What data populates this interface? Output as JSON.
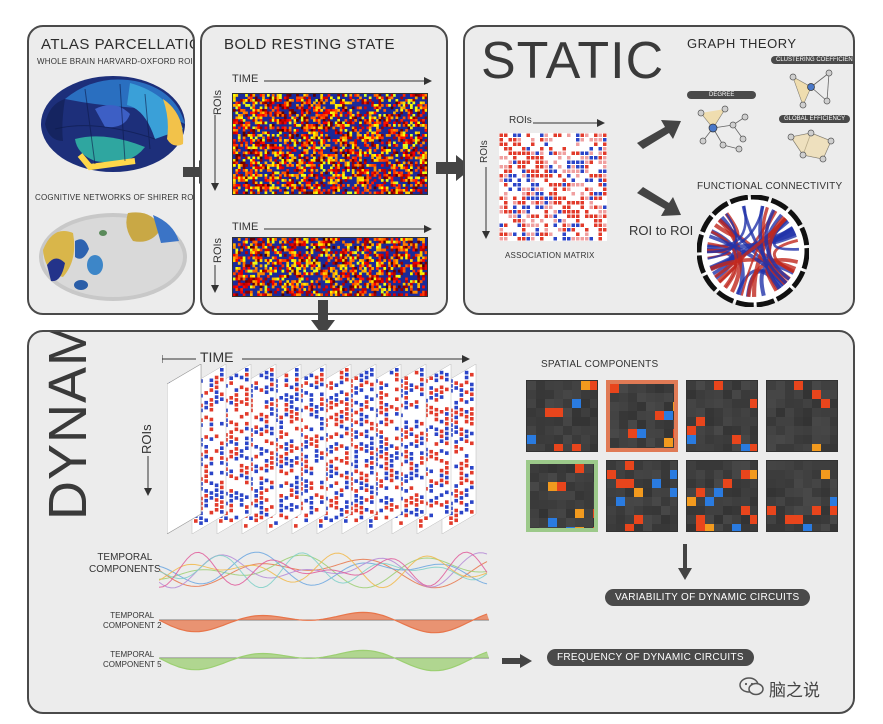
{
  "atlas": {
    "title": "ATLAS PARCELLATION",
    "subtitle1": "WHOLE BRAIN HARVARD-OXFORD ROIs",
    "subtitle2": "COGNITIVE NETWORKS OF SHIRER ROIs"
  },
  "bold": {
    "title": "BOLD RESTING STATE",
    "time_label": "TIME",
    "rois_label": "ROIs"
  },
  "static": {
    "title": "STATIC",
    "graph_theory": "GRAPH THEORY",
    "degree": "DEGREE",
    "clustering": "CLUSTERING COEFFICIENT",
    "global_efficiency": "GLOBAL EFFICIENCY",
    "functional_connectivity": "FUNCTIONAL CONNECTIVITY",
    "roi_to_roi": "ROI to ROI",
    "rois_label": "ROIs",
    "association_matrix": "ASSOCIATION MATRIX"
  },
  "dynamic": {
    "title": "DYNAMIC",
    "time_label": "TIME",
    "rois_label": "ROIs",
    "spatial_components": "SPATIAL COMPONENTS",
    "temporal_components": "TEMPORAL\nCOMPONENTS",
    "temporal_component_2": "TEMPORAL\nCOMPONENT 2",
    "temporal_component_5": "TEMPORAL\nCOMPONENT 5",
    "variability": "VARIABILITY OF DYNAMIC CIRCUITS",
    "frequency": "FREQUENCY OF DYNAMIC CIRCUITS"
  },
  "watermark": "脑之说",
  "colors": {
    "panel_bg": "#ececec",
    "border": "#4a4a4a",
    "positive": "#e23b2b",
    "negative": "#1f3fbf",
    "component2": "#e8754a",
    "component5": "#9ccf72",
    "highlight_orange": "#e07a55",
    "highlight_green": "#9cc98a"
  },
  "icons": [
    "brain-lateral-icon",
    "brain-networks-icon",
    "graph-network-icon",
    "chord-connectome-icon",
    "wechat-icon"
  ]
}
